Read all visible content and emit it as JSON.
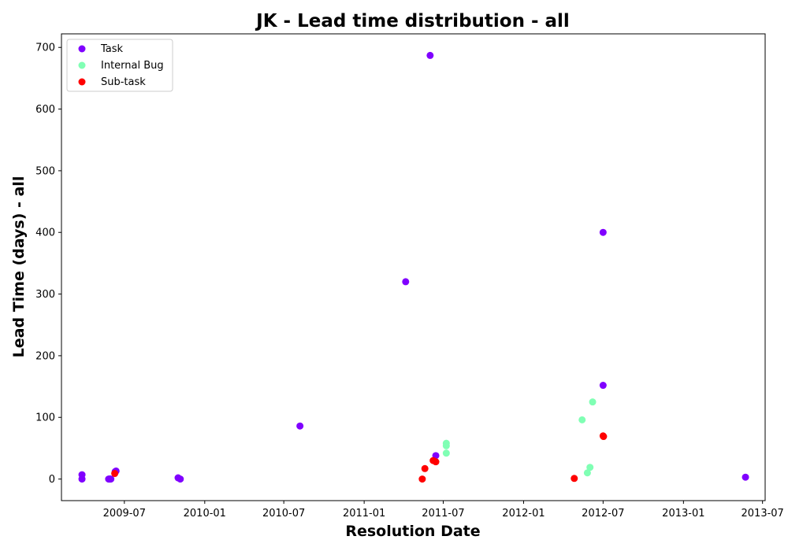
{
  "chart_data": {
    "type": "scatter",
    "title": "JK - Lead time distribution - all",
    "xlabel": "Resolution Date",
    "ylabel": "Lead Time (days) - all",
    "xlim": [
      "2009-02-07",
      "2013-07-07"
    ],
    "ylim": [
      -35,
      722
    ],
    "x_ticks": [
      "2009-07",
      "2010-01",
      "2010-07",
      "2011-01",
      "2011-07",
      "2012-01",
      "2012-07",
      "2013-01",
      "2013-07"
    ],
    "y_ticks": [
      0,
      100,
      200,
      300,
      400,
      500,
      600,
      700
    ],
    "grid": false,
    "legend_position": "top-left",
    "series": [
      {
        "name": "Task",
        "color": "#8000ff",
        "points": [
          {
            "x": "2009-03-26",
            "y": 7
          },
          {
            "x": "2009-03-26",
            "y": 0
          },
          {
            "x": "2009-05-26",
            "y": 0
          },
          {
            "x": "2009-05-27",
            "y": 0
          },
          {
            "x": "2009-05-28",
            "y": 0
          },
          {
            "x": "2009-05-29",
            "y": 0
          },
          {
            "x": "2009-05-30",
            "y": 0
          },
          {
            "x": "2009-05-31",
            "y": 0
          },
          {
            "x": "2009-06-10",
            "y": 12
          },
          {
            "x": "2009-06-12",
            "y": 13
          },
          {
            "x": "2009-11-01",
            "y": 2
          },
          {
            "x": "2009-11-06",
            "y": 0
          },
          {
            "x": "2010-08-07",
            "y": 86
          },
          {
            "x": "2011-04-06",
            "y": 320
          },
          {
            "x": "2011-06-01",
            "y": 687
          },
          {
            "x": "2011-06-14",
            "y": 38
          },
          {
            "x": "2012-07-01",
            "y": 400
          },
          {
            "x": "2012-07-01",
            "y": 152
          },
          {
            "x": "2013-05-23",
            "y": 3
          }
        ]
      },
      {
        "name": "Internal Bug",
        "color": "#80ffb4",
        "points": [
          {
            "x": "2011-07-08",
            "y": 58
          },
          {
            "x": "2011-07-08",
            "y": 54
          },
          {
            "x": "2011-07-08",
            "y": 42
          },
          {
            "x": "2012-05-14",
            "y": 96
          },
          {
            "x": "2012-05-26",
            "y": 10
          },
          {
            "x": "2012-06-01",
            "y": 19
          },
          {
            "x": "2012-06-07",
            "y": 125
          }
        ]
      },
      {
        "name": "Sub-task",
        "color": "#ff0000",
        "points": [
          {
            "x": "2009-06-09",
            "y": 9
          },
          {
            "x": "2011-05-14",
            "y": 0
          },
          {
            "x": "2011-05-20",
            "y": 17
          },
          {
            "x": "2011-06-08",
            "y": 30
          },
          {
            "x": "2011-06-14",
            "y": 28
          },
          {
            "x": "2012-04-26",
            "y": 1
          },
          {
            "x": "2012-07-01",
            "y": 70
          },
          {
            "x": "2012-07-02",
            "y": 69
          }
        ]
      }
    ]
  }
}
